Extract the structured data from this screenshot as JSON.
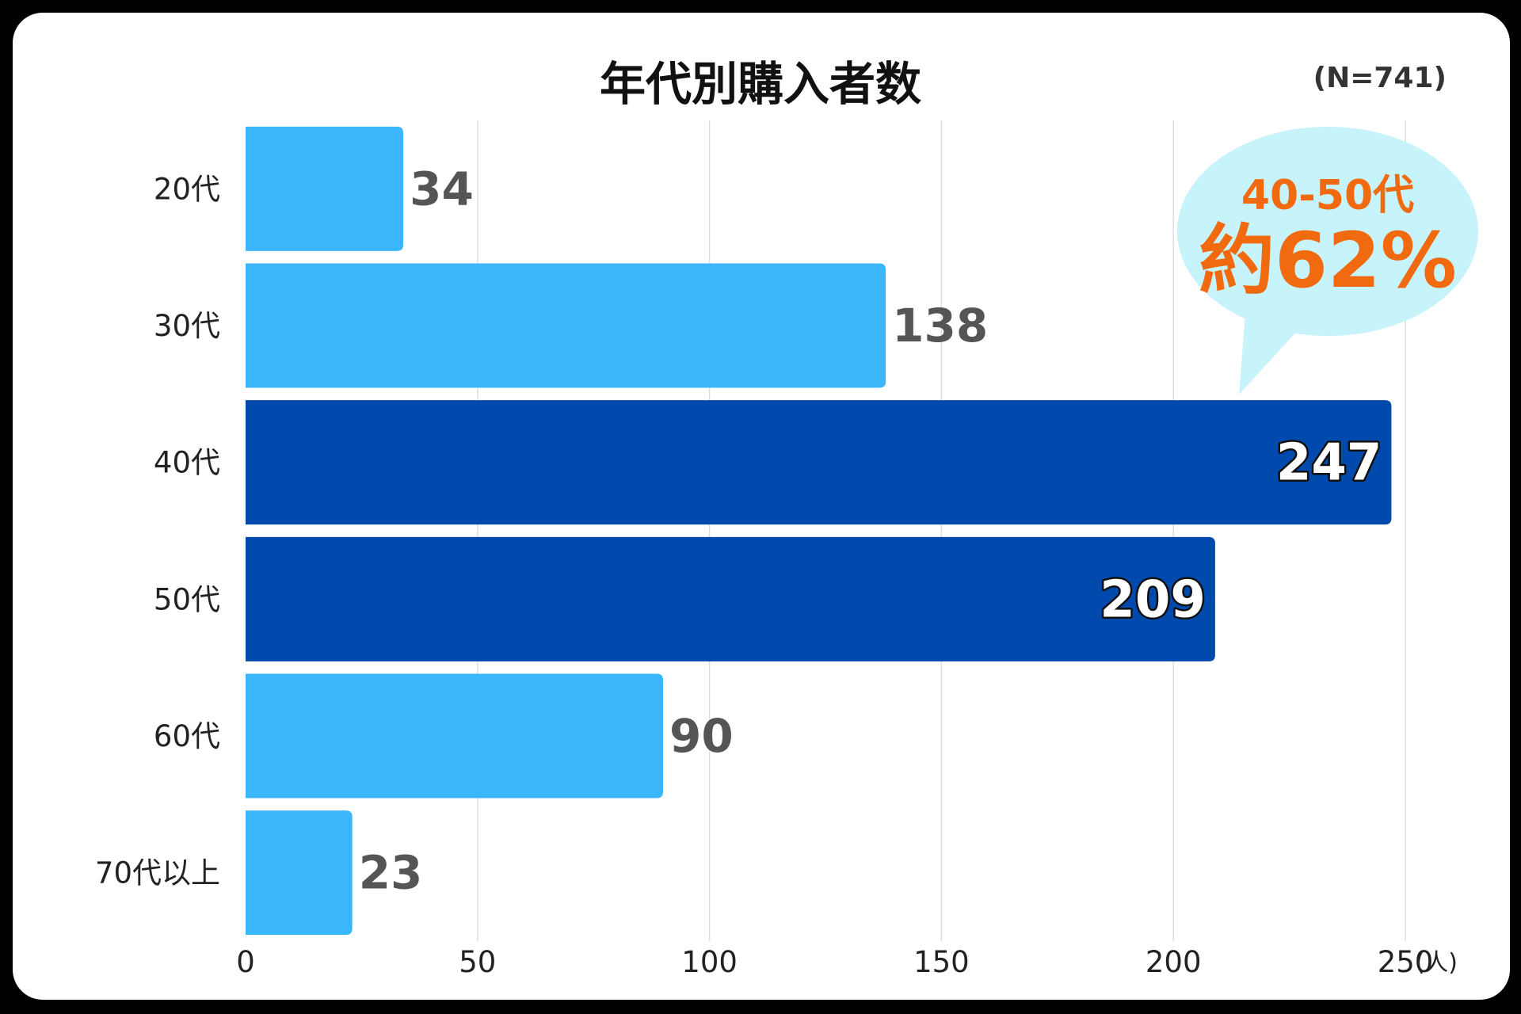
{
  "chart_data": {
    "type": "bar",
    "orientation": "horizontal",
    "title": "年代別購入者数",
    "sample_note": "(N=741)",
    "categories": [
      "20代",
      "30代",
      "40代",
      "50代",
      "60代",
      "70代以上"
    ],
    "values": [
      34,
      138,
      247,
      209,
      90,
      23
    ],
    "highlighted": [
      false,
      false,
      true,
      true,
      false,
      false
    ],
    "x_ticks": [
      0,
      50,
      100,
      150,
      200,
      250
    ],
    "xlim": [
      0,
      250
    ],
    "unit": "(人)",
    "grid": "vertical",
    "callout": {
      "line1": "40-50代",
      "line2": "約62%"
    },
    "colors": {
      "bar": "#3bb6fb",
      "bar_highlight": "#004aad",
      "callout_bubble": "#c7f3fb",
      "callout_text": "#f26a10",
      "grid": "#dddddd"
    }
  }
}
